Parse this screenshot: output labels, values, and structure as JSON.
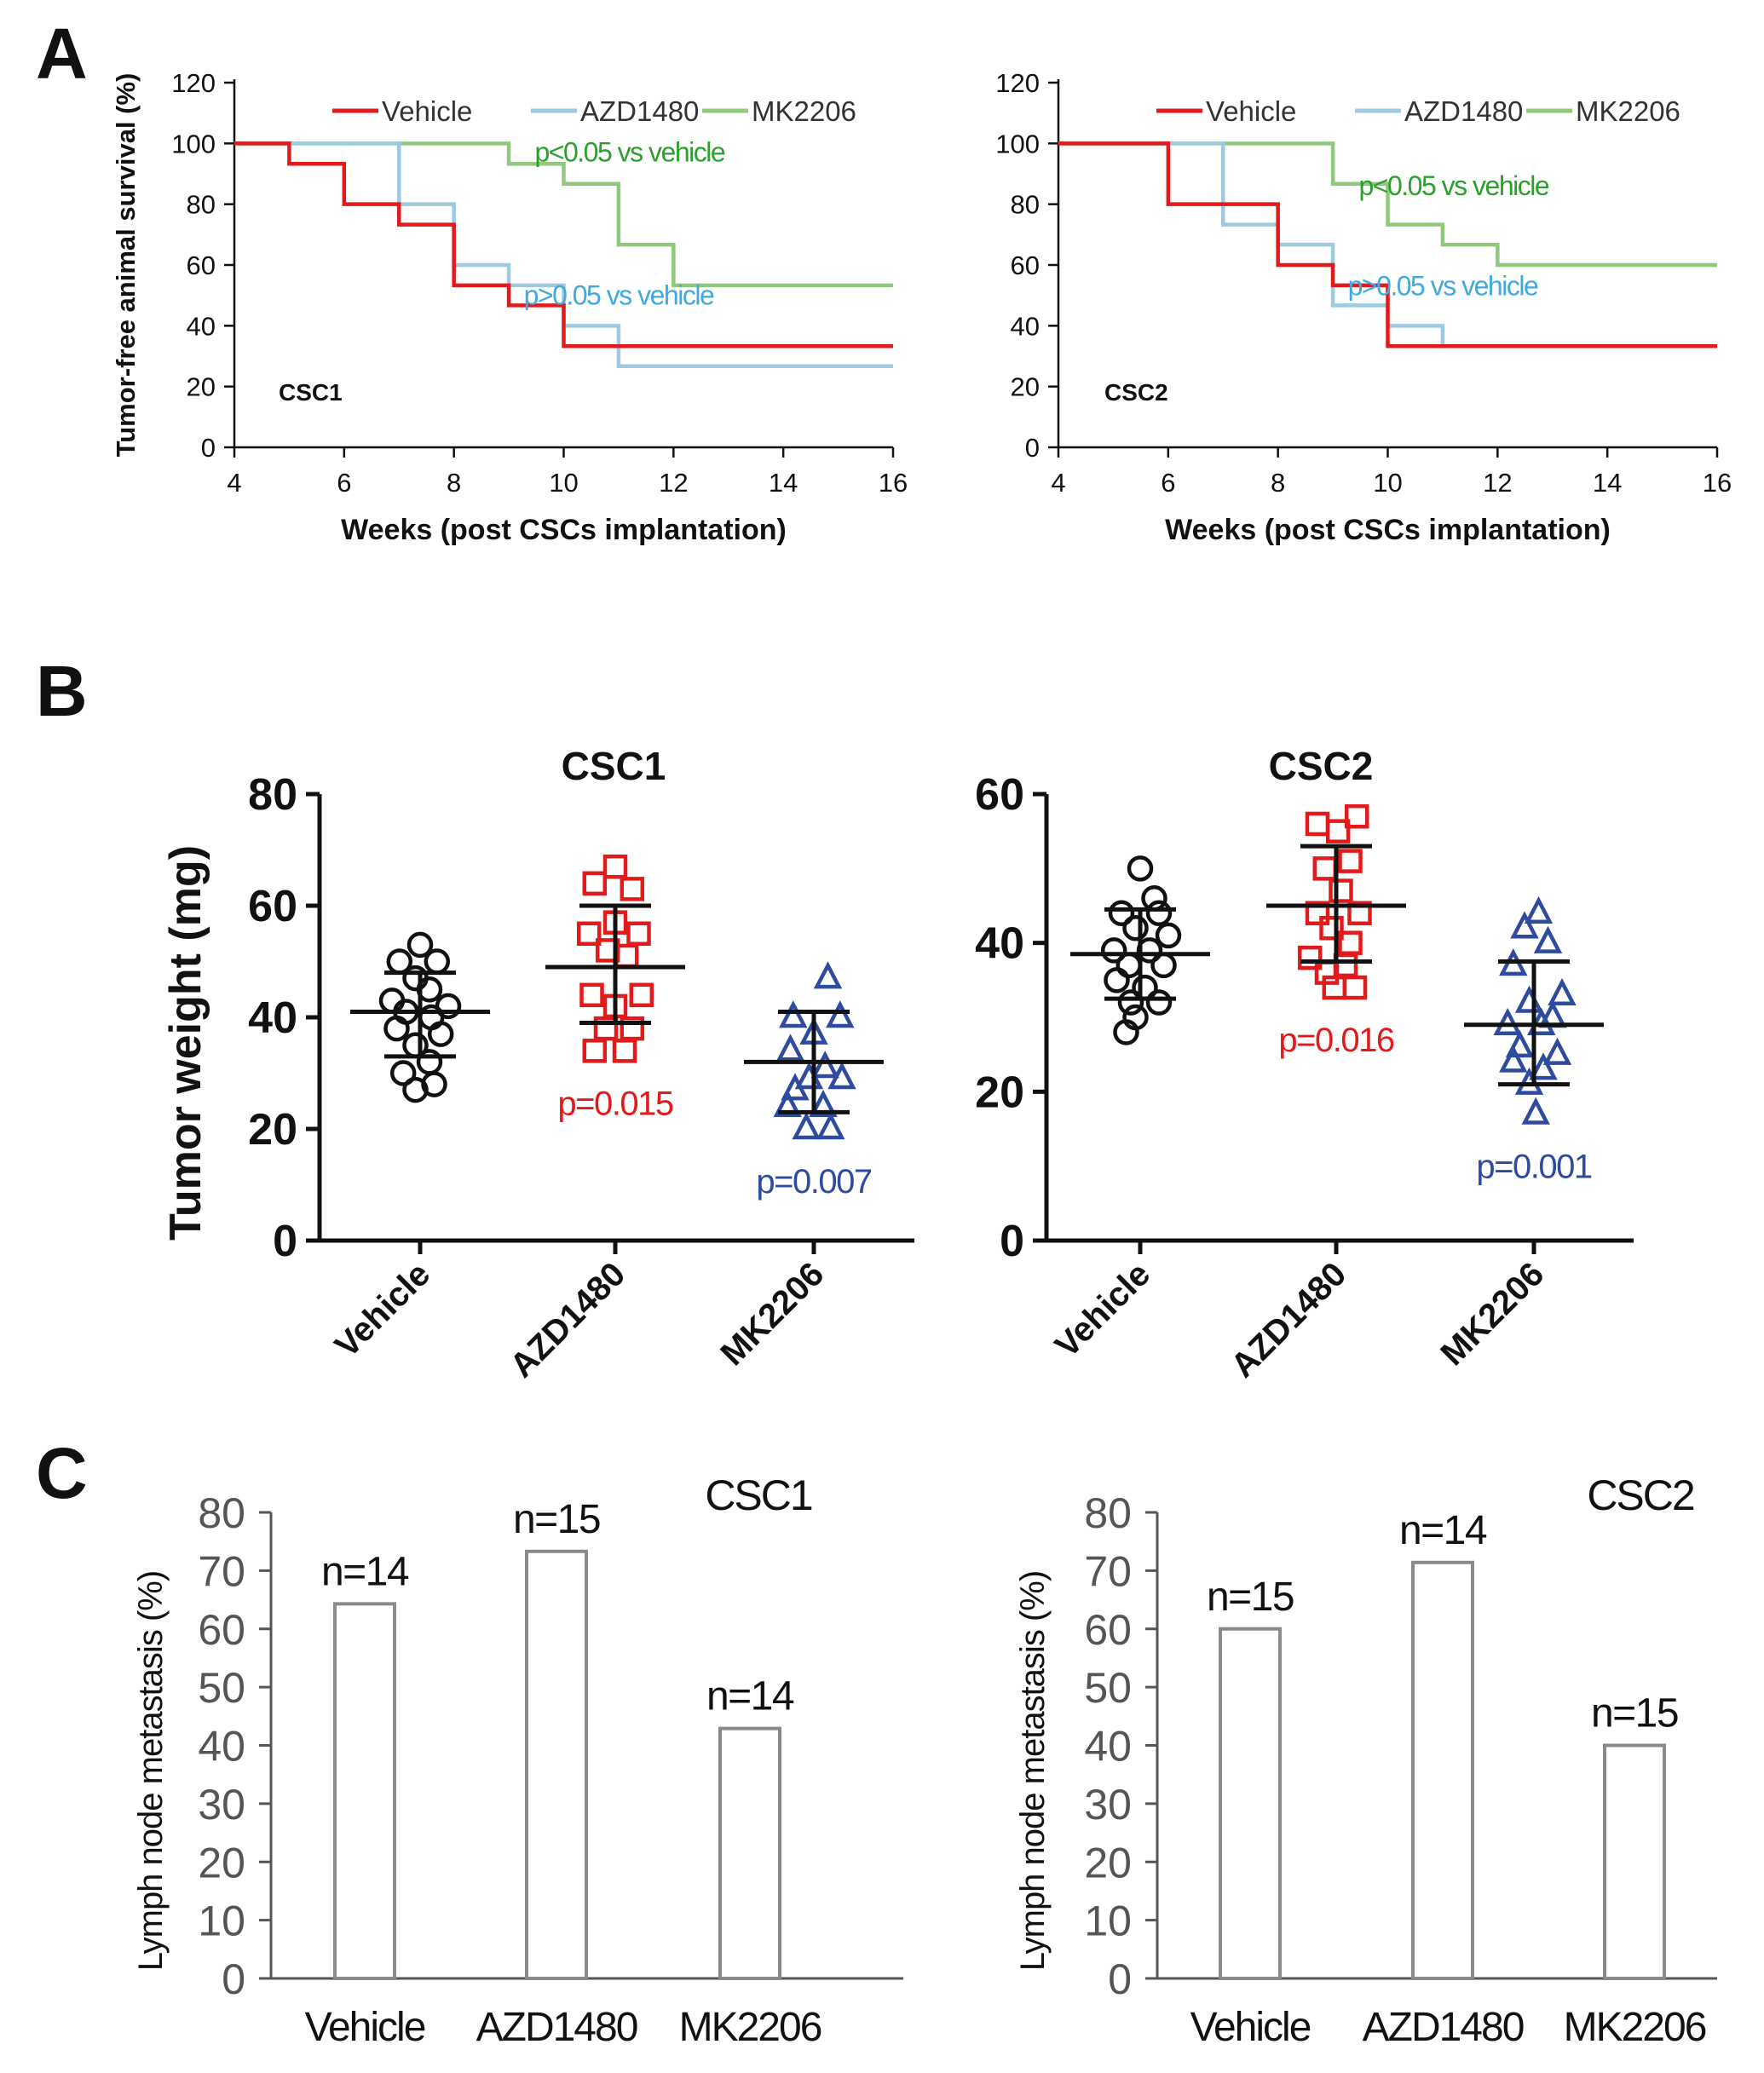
{
  "panels": {
    "A": {
      "letter": "A"
    },
    "B": {
      "letter": "B"
    },
    "C": {
      "letter": "C"
    }
  },
  "colors": {
    "vehicle": "#e31a1c",
    "azd1480": "#9ecae1",
    "mk2206": "#90c97e",
    "pval_green": "#2ca02c",
    "pval_blue": "#3fa9e0",
    "b_vehicle": "#111111",
    "b_azd": "#e31a1c",
    "b_mk": "#2e4ba0",
    "bar_edge": "#8a8a8a",
    "axis": "#111111"
  },
  "chart_data": [
    {
      "id": "A1",
      "type": "line",
      "step": true,
      "title": "CSC1",
      "xlabel": "Weeks (post CSCs implantation)",
      "ylabel": "Tumor-free animal survival (%)",
      "xlim": [
        4,
        16
      ],
      "ylim": [
        0,
        120
      ],
      "xticks": [
        4,
        6,
        8,
        10,
        12,
        14,
        16
      ],
      "yticks": [
        0,
        20,
        40,
        60,
        80,
        100,
        120
      ],
      "legend": [
        "Vehicle",
        "AZD1480",
        "MK2206"
      ],
      "series": [
        {
          "name": "MK2206",
          "color_key": "mk2206",
          "x": [
            4,
            9,
            10,
            11,
            12,
            16
          ],
          "y": [
            100,
            93.3,
            86.7,
            66.7,
            53.3,
            53.3
          ]
        },
        {
          "name": "AZD1480",
          "color_key": "azd1480",
          "x": [
            4,
            7,
            8,
            9,
            10,
            11,
            16
          ],
          "y": [
            100,
            80,
            60,
            53.3,
            40,
            26.7,
            26.7
          ]
        },
        {
          "name": "Vehicle",
          "color_key": "vehicle",
          "x": [
            4,
            5,
            6,
            7,
            8,
            9,
            10,
            16
          ],
          "y": [
            100,
            93.3,
            80,
            73.3,
            53.3,
            46.7,
            33.3,
            33.3
          ]
        }
      ],
      "annotations": [
        {
          "text": "p<0.05  vs vehicle",
          "color_key": "pval_green",
          "x": 11.2,
          "y": 94
        },
        {
          "text": "p>0.05  vs vehicle",
          "color_key": "pval_blue",
          "x": 11.0,
          "y": 47
        }
      ]
    },
    {
      "id": "A2",
      "type": "line",
      "step": true,
      "title": "CSC2",
      "xlabel": "Weeks (post CSCs implantation)",
      "ylabel": "",
      "xlim": [
        4,
        16
      ],
      "ylim": [
        0,
        120
      ],
      "xticks": [
        4,
        6,
        8,
        10,
        12,
        14,
        16
      ],
      "yticks": [
        0,
        20,
        40,
        60,
        80,
        100,
        120
      ],
      "legend": [
        "Vehicle",
        "AZD1480",
        "MK2206"
      ],
      "series": [
        {
          "name": "MK2206",
          "color_key": "mk2206",
          "x": [
            4,
            9,
            10,
            11,
            12,
            16
          ],
          "y": [
            100,
            86.7,
            73.3,
            66.7,
            60,
            60
          ]
        },
        {
          "name": "AZD1480",
          "color_key": "azd1480",
          "x": [
            4,
            7,
            8,
            9,
            10,
            11,
            16
          ],
          "y": [
            100,
            73.3,
            66.7,
            46.7,
            40,
            33.3,
            33.3
          ]
        },
        {
          "name": "Vehicle",
          "color_key": "vehicle",
          "x": [
            4,
            6,
            8,
            9,
            10,
            16
          ],
          "y": [
            100,
            80,
            60,
            53.3,
            33.3,
            33.3
          ]
        }
      ],
      "annotations": [
        {
          "text": "p<0.05  vs vehicle",
          "color_key": "pval_green",
          "x": 11.2,
          "y": 83
        },
        {
          "text": "p>0.05  vs vehicle",
          "color_key": "pval_blue",
          "x": 11.0,
          "y": 50
        }
      ]
    },
    {
      "id": "B1",
      "type": "scatter",
      "title": "CSC1",
      "ylabel": "Tumor weight (mg)",
      "ylim": [
        0,
        80
      ],
      "yticks": [
        0,
        20,
        40,
        60,
        80
      ],
      "categories": [
        "Vehicle",
        "AZD1480",
        "MK2206"
      ],
      "groups": [
        {
          "name": "Vehicle",
          "marker": "circle",
          "color_key": "b_vehicle",
          "mean": 41,
          "sd_low": 33,
          "sd_high": 48,
          "pvalue": "",
          "points": [
            [
              0,
              53
            ],
            [
              -0.22,
              50
            ],
            [
              0.18,
              50
            ],
            [
              -0.05,
              47
            ],
            [
              0.1,
              45
            ],
            [
              -0.3,
              43
            ],
            [
              0.3,
              42
            ],
            [
              -0.15,
              41
            ],
            [
              0.12,
              40
            ],
            [
              -0.25,
              38
            ],
            [
              0.22,
              37
            ],
            [
              -0.05,
              35
            ],
            [
              0.1,
              32
            ],
            [
              -0.18,
              30
            ],
            [
              0.15,
              28
            ],
            [
              -0.05,
              27
            ]
          ]
        },
        {
          "name": "AZD1480",
          "marker": "square",
          "color_key": "b_azd",
          "mean": 49,
          "sd_low": 39,
          "sd_high": 60,
          "pvalue": "p=0.015",
          "points": [
            [
              0,
              67
            ],
            [
              -0.22,
              64
            ],
            [
              0.18,
              63
            ],
            [
              0,
              57
            ],
            [
              -0.28,
              55
            ],
            [
              0.25,
              55
            ],
            [
              -0.08,
              52
            ],
            [
              0.12,
              51
            ],
            [
              -0.25,
              44
            ],
            [
              0.28,
              44
            ],
            [
              0,
              42
            ],
            [
              -0.1,
              38
            ],
            [
              0.18,
              38
            ],
            [
              -0.22,
              34
            ],
            [
              0.1,
              34
            ]
          ]
        },
        {
          "name": "MK2206",
          "marker": "triangle",
          "color_key": "b_mk",
          "mean": 32,
          "sd_low": 23,
          "sd_high": 41,
          "pvalue": "p=0.007",
          "points": [
            [
              0.15,
              47
            ],
            [
              -0.22,
              40
            ],
            [
              0.28,
              40
            ],
            [
              0,
              37
            ],
            [
              -0.25,
              34
            ],
            [
              0.12,
              31
            ],
            [
              -0.05,
              29
            ],
            [
              0.3,
              29
            ],
            [
              -0.2,
              27
            ],
            [
              0.1,
              24
            ],
            [
              -0.28,
              24
            ],
            [
              0.18,
              20
            ],
            [
              -0.08,
              20
            ]
          ]
        }
      ]
    },
    {
      "id": "B2",
      "type": "scatter",
      "title": "CSC2",
      "ylabel": "",
      "ylim": [
        0,
        60
      ],
      "yticks": [
        0,
        20,
        40,
        60
      ],
      "categories": [
        "Vehicle",
        "AZD1480",
        "MK2206"
      ],
      "groups": [
        {
          "name": "Vehicle",
          "marker": "circle",
          "color_key": "b_vehicle",
          "mean": 38.5,
          "sd_low": 32.5,
          "sd_high": 44.5,
          "pvalue": "",
          "points": [
            [
              0,
              50
            ],
            [
              0.15,
              46
            ],
            [
              -0.2,
              44
            ],
            [
              0.2,
              44
            ],
            [
              -0.05,
              42
            ],
            [
              0.3,
              41
            ],
            [
              -0.28,
              39
            ],
            [
              0.1,
              39
            ],
            [
              -0.12,
              37
            ],
            [
              0.25,
              37
            ],
            [
              -0.25,
              35
            ],
            [
              0.05,
              34
            ],
            [
              -0.1,
              32
            ],
            [
              0.2,
              32
            ],
            [
              -0.05,
              30
            ],
            [
              -0.15,
              28
            ]
          ]
        },
        {
          "name": "AZD1480",
          "marker": "square",
          "color_key": "b_azd",
          "mean": 45,
          "sd_low": 37.5,
          "sd_high": 53,
          "pvalue": "p=0.016",
          "points": [
            [
              0.22,
              57
            ],
            [
              -0.2,
              56
            ],
            [
              0.02,
              55
            ],
            [
              0.15,
              51
            ],
            [
              -0.12,
              50
            ],
            [
              0.05,
              47
            ],
            [
              -0.2,
              44
            ],
            [
              0.25,
              44
            ],
            [
              -0.05,
              42
            ],
            [
              0.15,
              40
            ],
            [
              -0.28,
              38
            ],
            [
              0.1,
              37
            ],
            [
              -0.1,
              36
            ],
            [
              0.2,
              34
            ],
            [
              -0.02,
              34
            ]
          ]
        },
        {
          "name": "MK2206",
          "marker": "triangle",
          "color_key": "b_mk",
          "mean": 29,
          "sd_low": 21,
          "sd_high": 37.5,
          "pvalue": "p=0.001",
          "points": [
            [
              0.05,
              44
            ],
            [
              -0.1,
              42
            ],
            [
              0.15,
              40
            ],
            [
              -0.22,
              37
            ],
            [
              0.3,
              33
            ],
            [
              -0.05,
              32
            ],
            [
              0.2,
              30
            ],
            [
              -0.28,
              29
            ],
            [
              0.08,
              29
            ],
            [
              -0.15,
              26
            ],
            [
              0.25,
              25
            ],
            [
              -0.22,
              24
            ],
            [
              0.1,
              23
            ],
            [
              -0.05,
              21
            ],
            [
              0.02,
              17
            ]
          ]
        }
      ]
    },
    {
      "id": "C1",
      "type": "bar",
      "title": "CSC1",
      "ylabel": "Lymph node metastasis (%)",
      "ylim": [
        0,
        80
      ],
      "yticks": [
        0,
        10,
        20,
        30,
        40,
        50,
        60,
        70,
        80
      ],
      "categories": [
        "Vehicle",
        "AZD1480",
        "MK2206"
      ],
      "values": [
        64.3,
        73.3,
        42.9
      ],
      "labels": [
        "n=14",
        "n=15",
        "n=14"
      ]
    },
    {
      "id": "C2",
      "type": "bar",
      "title": "CSC2",
      "ylabel": "Lymph node metastasis (%)",
      "ylim": [
        0,
        80
      ],
      "yticks": [
        0,
        10,
        20,
        30,
        40,
        50,
        60,
        70,
        80
      ],
      "categories": [
        "Vehicle",
        "AZD1480",
        "MK2206"
      ],
      "values": [
        60,
        71.4,
        40
      ],
      "labels": [
        "n=15",
        "n=14",
        "n=15"
      ]
    }
  ]
}
